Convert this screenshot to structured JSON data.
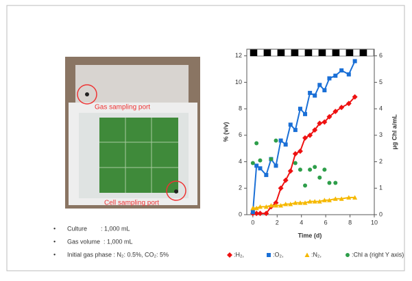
{
  "chart_data": {
    "type": "line",
    "x_label": "Time (d)",
    "y_label": "% (v/v)",
    "y2_label": "μg Chl a/mL",
    "xlim": [
      -0.5,
      10
    ],
    "xticks": [
      0,
      2,
      4,
      6,
      8,
      10
    ],
    "ylim": [
      0,
      12.5
    ],
    "yticks": [
      0,
      2,
      4,
      6,
      8,
      10,
      12
    ],
    "y2lim": [
      0,
      6.25
    ],
    "y2ticks": [
      0,
      1,
      2,
      3,
      4,
      5,
      6
    ],
    "x": [
      0,
      0.3,
      0.6,
      1.1,
      1.5,
      1.9,
      2.3,
      2.7,
      3.1,
      3.5,
      3.9,
      4.3,
      4.7,
      5.1,
      5.5,
      5.9,
      6.3,
      6.8,
      7.3,
      7.9,
      8.4
    ],
    "series": [
      {
        "name": ":H₂,",
        "color": "#ee1111",
        "marker": "diamond",
        "line": true,
        "values": [
          0.1,
          0.1,
          0.1,
          0.1,
          0.6,
          0.9,
          2.0,
          2.6,
          3.3,
          4.6,
          4.8,
          5.8,
          6.0,
          6.4,
          6.9,
          7.0,
          7.4,
          7.8,
          8.1,
          8.4,
          8.9
        ]
      },
      {
        "name": ":O₂,",
        "color": "#1a6fd6",
        "marker": "square",
        "line": true,
        "values": [
          0.2,
          3.7,
          3.5,
          3.0,
          4.2,
          3.7,
          5.6,
          5.3,
          6.8,
          6.4,
          8.0,
          7.6,
          9.2,
          9.0,
          9.8,
          9.4,
          10.3,
          10.5,
          10.9,
          10.6,
          11.6
        ]
      },
      {
        "name": ":N₂,",
        "color": "#f5b800",
        "marker": "triangle",
        "line": true,
        "values": [
          0.5,
          0.5,
          0.6,
          0.6,
          0.7,
          0.7,
          0.7,
          0.8,
          0.8,
          0.9,
          0.9,
          0.9,
          1.0,
          1.0,
          1.0,
          1.1,
          1.1,
          1.2,
          1.2,
          1.3,
          1.3
        ]
      },
      {
        "name": ":Chl a (right Y axis)",
        "color": "#2e9e4a",
        "marker": "circle",
        "line": false,
        "axis": "y2",
        "values": [
          1.95,
          2.7,
          2.05,
          null,
          2.1,
          2.8,
          null,
          null,
          null,
          1.95,
          1.7,
          1.1,
          1.7,
          1.8,
          1.4,
          1.7,
          1.2,
          1.2,
          null,
          null,
          null
        ]
      }
    ]
  },
  "photo": {
    "labels": [
      "Gas sampling port",
      "Cell sampling port"
    ]
  },
  "notes": [
    "Culture        : 1,000 mL",
    "Gas volume  : 1,000 mL",
    "Initial gas phase : N₂: 0.5%, CO₂: 5%"
  ]
}
